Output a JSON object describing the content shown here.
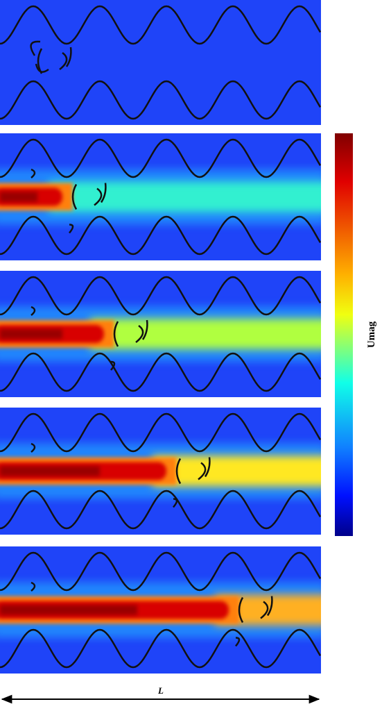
{
  "colorbar": {
    "label": "Umag"
  },
  "scale": {
    "label": "L"
  }
}
